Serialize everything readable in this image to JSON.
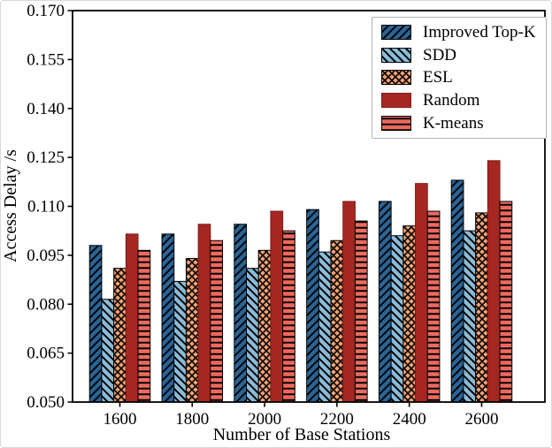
{
  "chart_data": {
    "type": "bar",
    "title": "",
    "xlabel": "Number of Base Stations",
    "ylabel": "Access Delay /s",
    "categories": [
      "1600",
      "1800",
      "2000",
      "2200",
      "2400",
      "2600"
    ],
    "series": [
      {
        "name": "Improved Top-K",
        "color": "#2a6496",
        "hatch": "/",
        "values": [
          0.098,
          0.1015,
          0.1045,
          0.109,
          0.1115,
          0.118
        ]
      },
      {
        "name": "SDD",
        "color": "#8abbd6",
        "hatch": "\\",
        "values": [
          0.0815,
          0.087,
          0.091,
          0.096,
          0.101,
          0.1025
        ]
      },
      {
        "name": "ESL",
        "color": "#f1a173",
        "hatch": "x",
        "values": [
          0.091,
          0.094,
          0.0965,
          0.0995,
          0.104,
          0.108
        ]
      },
      {
        "name": "Random",
        "color": "#a52622",
        "hatch": "",
        "values": [
          0.1015,
          0.1045,
          0.1085,
          0.1115,
          0.117,
          0.124
        ]
      },
      {
        "name": "K-means",
        "color": "#ee6a5d",
        "hatch": "-",
        "values": [
          0.0965,
          0.0995,
          0.1025,
          0.1055,
          0.1085,
          0.1115
        ]
      }
    ],
    "ylim": [
      0.05,
      0.17
    ],
    "ytick_step": 0.015,
    "yticks": [
      "0.050",
      "0.065",
      "0.080",
      "0.095",
      "0.110",
      "0.125",
      "0.140",
      "0.155",
      "0.170"
    ],
    "grid": false,
    "legend_position": "upper right",
    "axis_color": "#000000",
    "hatch_color": "#000000"
  }
}
